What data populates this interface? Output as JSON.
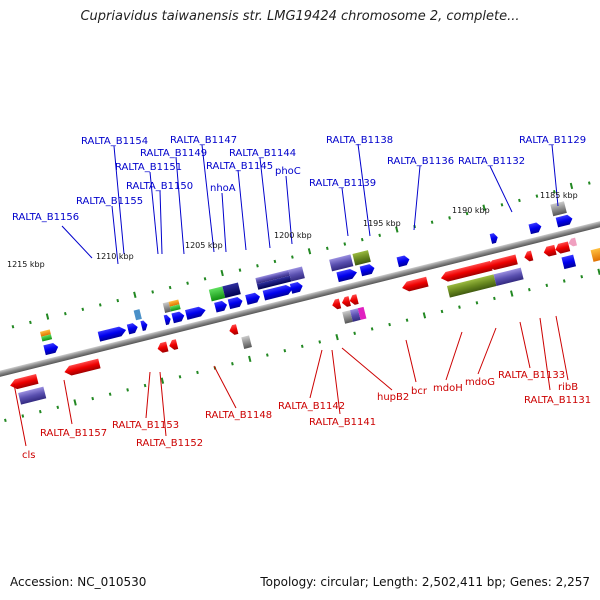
{
  "title": "Cupriavidus taiwanensis str. LMG19424 chromosome 2, complete...",
  "footer": {
    "accession": "Accession: NC_010530",
    "topology": "Topology: circular; Length: 2,502,411 bp; Genes: 2,257"
  },
  "colors": {
    "forward_gene": "#0000ee",
    "reverse_gene": "#ee0000",
    "backbone": "#888888",
    "label_forward": "#0000cc",
    "label_reverse": "#cc0000",
    "tick": "#228822"
  },
  "ticks": [
    "1215 kbp",
    "1210 kbp",
    "1205 kbp",
    "1200 kbp",
    "1195 kbp",
    "1190 kbp",
    "1185 kbp"
  ],
  "forward_labels": [
    "RALTA_B1156",
    "RALTA_B1155",
    "RALTA_B1154",
    "RALTA_B1151",
    "RALTA_B1150",
    "RALTA_B1149",
    "RALTA_B1147",
    "nhoA",
    "RALTA_B1145",
    "RALTA_B1144",
    "phoC",
    "RALTA_B1139",
    "RALTA_B1138",
    "RALTA_B1136",
    "RALTA_B1132",
    "RALTA_B1129"
  ],
  "reverse_labels": [
    "cls",
    "RALTA_B1157",
    "RALTA_B1153",
    "RALTA_B1152",
    "RALTA_B1148",
    "RALTA_B1142",
    "RALTA_B1141",
    "hupB2",
    "bcr",
    "mdoH",
    "mdoG",
    "RALTA_B1133",
    "ribB",
    "RALTA_B1131"
  ]
}
